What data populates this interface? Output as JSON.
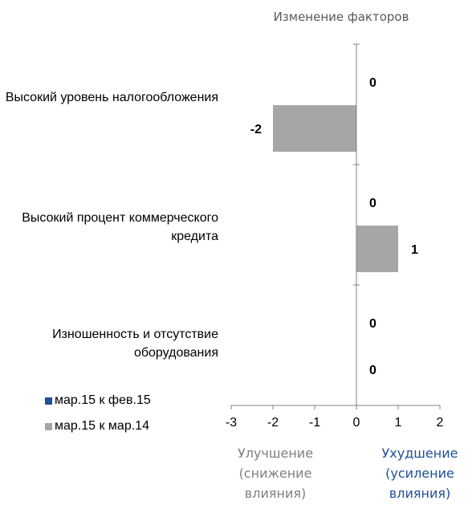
{
  "chart_data": {
    "type": "bar",
    "orientation": "horizontal",
    "title": "Изменение факторов",
    "categories": [
      "Высокий уровень\nналогообложения",
      "Высокий процент\nкоммерческого кредита",
      "Изношенность и\nотсутствие оборудования"
    ],
    "series": [
      {
        "name": "мар.15 к фев.15",
        "color": "#1f4e9c",
        "values": [
          0,
          0,
          0
        ]
      },
      {
        "name": "мар.15 к мар.14",
        "color": "#a6a6a6",
        "values": [
          -2,
          1,
          0
        ]
      }
    ],
    "data_labels": {
      "series_0": [
        "0",
        "0",
        "0"
      ],
      "series_1": [
        "-2",
        "1",
        "0"
      ]
    },
    "xlim": [
      -3,
      2
    ],
    "x_ticks": [
      "-3",
      "-2",
      "-1",
      "0",
      "1",
      "2"
    ],
    "grid": false,
    "legend_position": "bottom-left",
    "annotations": {
      "left": {
        "text": "Улучшение\n(снижение\nвлияния)",
        "color": "#7f7f7f"
      },
      "right": {
        "text": "Ухудшение\n(усиление\nвлияния)",
        "color": "#1f4e9c"
      }
    }
  }
}
